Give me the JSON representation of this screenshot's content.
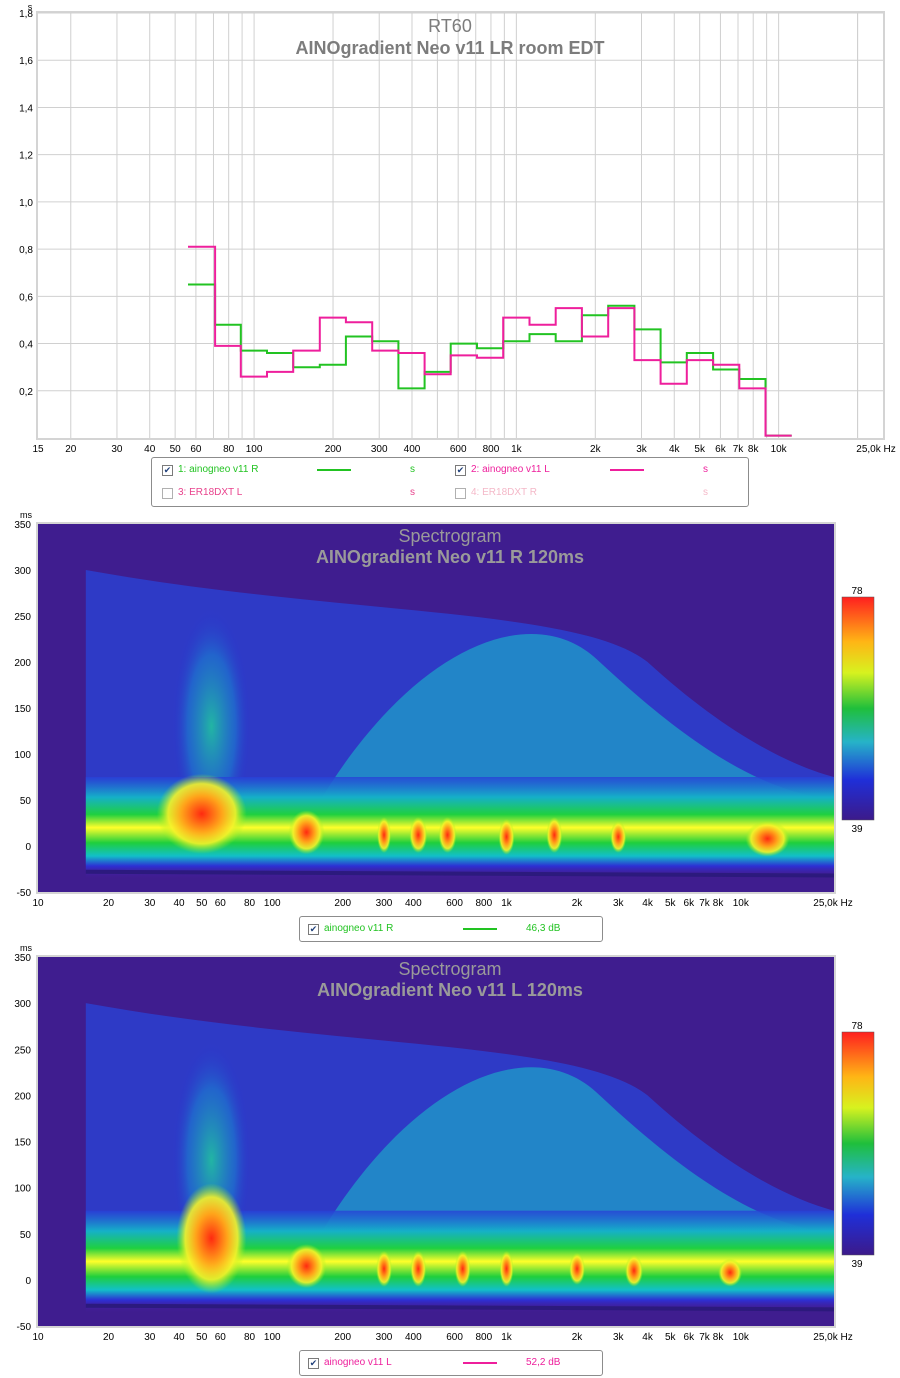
{
  "chart_data": [
    {
      "type": "line",
      "title": "RT60",
      "subtitle": "AINOgradient Neo v11 LR room EDT",
      "x_scale": "log",
      "xlim": [
        15,
        25000
      ],
      "ylim": [
        0,
        1.8
      ],
      "y_unit": "s",
      "x_ticks": [
        15,
        20,
        30,
        40,
        50,
        60,
        80,
        100,
        200,
        300,
        400,
        600,
        800,
        1000,
        2000,
        3000,
        4000,
        5000,
        6000,
        7000,
        8000,
        10000
      ],
      "x_tick_labels": [
        "15",
        "20",
        "30",
        "40",
        "50",
        "60",
        "80",
        "100",
        "200",
        "300",
        "400",
        "600",
        "800",
        "1k",
        "2k",
        "3k",
        "4k",
        "5k",
        "6k",
        "7k",
        "8k",
        "10k"
      ],
      "x_unit_label": "25,0k Hz",
      "y_ticks": [
        0.2,
        0.4,
        0.6,
        0.8,
        1.0,
        1.2,
        1.4,
        1.6,
        1.8
      ],
      "y_tick_labels": [
        "0,2",
        "0,4",
        "0,6",
        "0,8",
        "1,0",
        "1,2",
        "1,4",
        "1,6",
        "1,8"
      ],
      "grid": true,
      "band_edges": [
        56,
        71,
        89,
        112,
        141,
        178,
        224,
        282,
        355,
        447,
        562,
        708,
        891,
        1122,
        1413,
        1778,
        2239,
        2818,
        3548,
        4467,
        5623,
        7079,
        8913,
        11220
      ],
      "series": [
        {
          "name": "1: ainogneo v11 R",
          "color": "#22c322",
          "values": [
            0.65,
            0.48,
            0.37,
            0.36,
            0.3,
            0.31,
            0.43,
            0.41,
            0.21,
            0.28,
            0.4,
            0.38,
            0.41,
            0.44,
            0.41,
            0.52,
            0.56,
            0.46,
            0.32,
            0.36,
            0.29,
            0.25,
            0.01
          ]
        },
        {
          "name": "2: ainogneo v11 L",
          "color": "#ee1f9c",
          "values": [
            0.81,
            0.39,
            0.26,
            0.28,
            0.37,
            0.51,
            0.49,
            0.37,
            0.36,
            0.27,
            0.35,
            0.34,
            0.51,
            0.48,
            0.55,
            0.43,
            0.55,
            0.33,
            0.23,
            0.33,
            0.31,
            0.21,
            0.01
          ]
        }
      ]
    },
    {
      "type": "heatmap",
      "title": "Spectrogram",
      "subtitle": "AINOgradient Neo v11 R 120ms",
      "x_scale": "log",
      "xlim": [
        10,
        25000
      ],
      "ylim": [
        -50,
        350
      ],
      "y_unit": "ms",
      "x_ticks": [
        10,
        20,
        30,
        40,
        50,
        60,
        80,
        100,
        200,
        300,
        400,
        600,
        800,
        1000,
        2000,
        3000,
        4000,
        5000,
        6000,
        7000,
        8000,
        10000
      ],
      "x_tick_labels": [
        "10",
        "20",
        "30",
        "40",
        "50",
        "60",
        "80",
        "100",
        "200",
        "300",
        "400",
        "600",
        "800",
        "1k",
        "2k",
        "3k",
        "4k",
        "5k",
        "6k",
        "7k",
        "8k",
        "10k"
      ],
      "x_unit_label": "25,0k Hz",
      "y_ticks": [
        -50,
        0,
        50,
        100,
        150,
        200,
        250,
        300,
        350
      ],
      "colorbar": {
        "max": "78",
        "min": "39"
      },
      "legend": {
        "name": "ainogneo v11 R",
        "value": "46,3 dB",
        "color": "#22c322"
      }
    },
    {
      "type": "heatmap",
      "title": "Spectrogram",
      "subtitle": "AINOgradient Neo v11 L 120ms",
      "x_scale": "log",
      "xlim": [
        10,
        25000
      ],
      "ylim": [
        -50,
        350
      ],
      "y_unit": "ms",
      "x_ticks": [
        10,
        20,
        30,
        40,
        50,
        60,
        80,
        100,
        200,
        300,
        400,
        600,
        800,
        1000,
        2000,
        3000,
        4000,
        5000,
        6000,
        7000,
        8000,
        10000
      ],
      "x_tick_labels": [
        "10",
        "20",
        "30",
        "40",
        "50",
        "60",
        "80",
        "100",
        "200",
        "300",
        "400",
        "600",
        "800",
        "1k",
        "2k",
        "3k",
        "4k",
        "5k",
        "6k",
        "7k",
        "8k",
        "10k"
      ],
      "x_unit_label": "25,0k Hz",
      "y_ticks": [
        -50,
        0,
        50,
        100,
        150,
        200,
        250,
        300,
        350
      ],
      "colorbar": {
        "max": "78",
        "min": "39"
      },
      "legend": {
        "name": "ainogneo v11 L",
        "value": "52,2 dB",
        "color": "#ee1f9c"
      }
    }
  ],
  "rt60_legend": [
    {
      "label": "1: ainogneo v11 R",
      "checked": true,
      "color": "#22c322",
      "unit": "s",
      "unit_color": "#22c322"
    },
    {
      "label": "2: ainogneo v11 L",
      "checked": true,
      "color": "#ee1f9c",
      "unit": "s",
      "unit_color": "#ee1f9c"
    },
    {
      "label": "3: ER18DXT L",
      "checked": false,
      "color": "#e8428c",
      "unit": "s",
      "unit_color": "#e8428c"
    },
    {
      "label": "4: ER18DXT R",
      "checked": false,
      "color": "#f4b8c8",
      "unit": "s",
      "unit_color": "#f4b8c8"
    }
  ]
}
